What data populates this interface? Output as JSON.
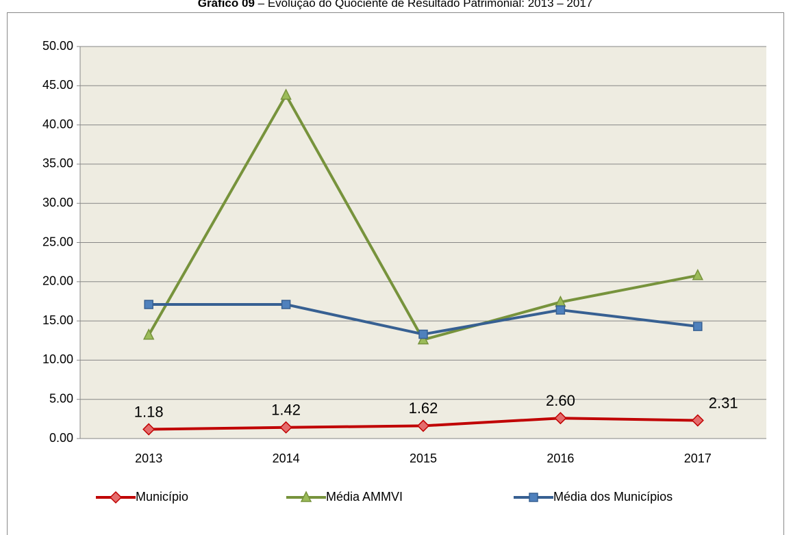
{
  "chart_data": {
    "type": "line",
    "title": "Gráfico 09",
    "subtitle": "– Evolução do Quociente de Resultado Patrimonial: 2013 – 2017",
    "categories": [
      "2013",
      "2014",
      "2015",
      "2016",
      "2017"
    ],
    "series": [
      {
        "name": "Município",
        "color": "#c00000",
        "marker": "diamond",
        "values": [
          1.18,
          1.42,
          1.62,
          2.6,
          2.31
        ],
        "value_labels": [
          "1.18",
          "1.42",
          "1.62",
          "2.60",
          "2.31"
        ]
      },
      {
        "name": "Média AMMVI",
        "color": "#77933c",
        "marker": "triangle",
        "values": [
          13.2,
          43.8,
          12.6,
          17.4,
          20.8
        ]
      },
      {
        "name": "Média dos Municípios",
        "color": "#376092",
        "marker": "square",
        "values": [
          17.1,
          17.1,
          13.3,
          16.4,
          14.3
        ]
      }
    ],
    "ylim": [
      0,
      50
    ],
    "yticks": [
      {
        "value": 0,
        "label": "0.00"
      },
      {
        "value": 5,
        "label": "5.00"
      },
      {
        "value": 10,
        "label": "10.00"
      },
      {
        "value": 15,
        "label": "15.00"
      },
      {
        "value": 20,
        "label": "20.00"
      },
      {
        "value": 25,
        "label": "25.00"
      },
      {
        "value": 30,
        "label": "30.00"
      },
      {
        "value": 35,
        "label": "35.00"
      },
      {
        "value": 40,
        "label": "40.00"
      },
      {
        "value": 45,
        "label": "45.00"
      },
      {
        "value": 50,
        "label": "50.00"
      }
    ],
    "grid": true,
    "legend": "bottom"
  }
}
